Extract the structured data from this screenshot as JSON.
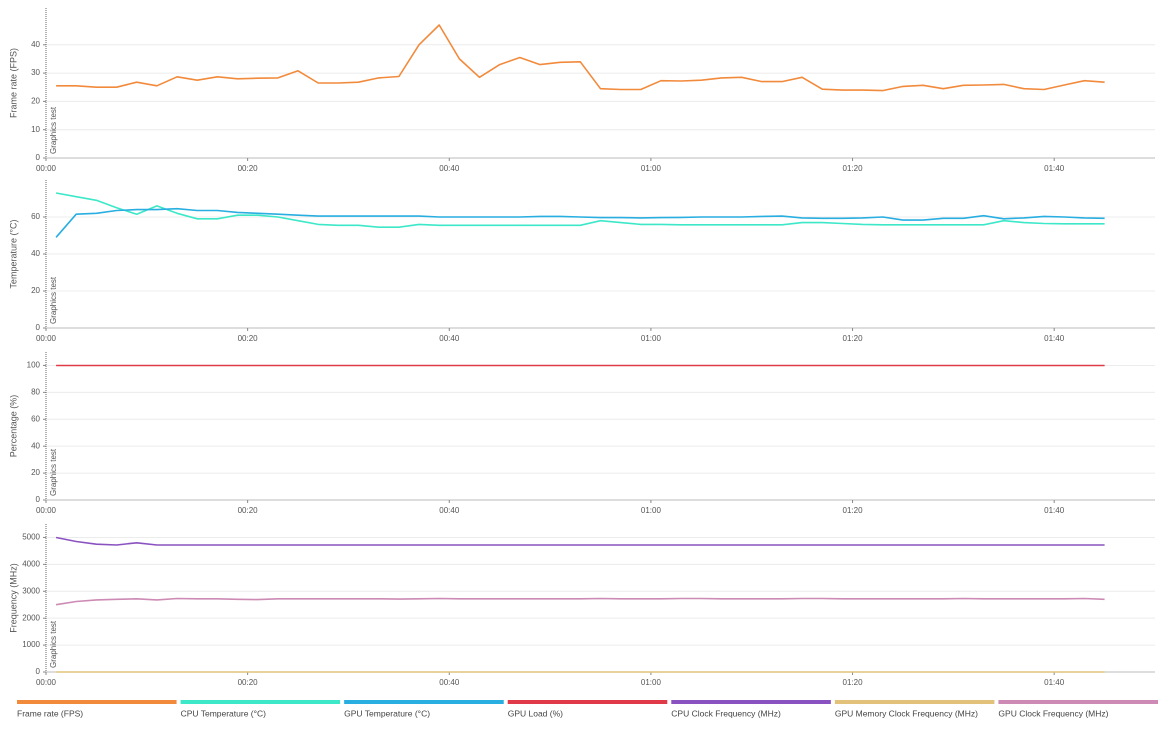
{
  "chart_data": [
    {
      "type": "line",
      "ylabel": "Frame rate (FPS)",
      "annotation": "Graphics test",
      "xlim": [
        0,
        110
      ],
      "xticks": [
        {
          "value": 0,
          "label": "00:00"
        },
        {
          "value": 20,
          "label": "00:20"
        },
        {
          "value": 40,
          "label": "00:40"
        },
        {
          "value": 60,
          "label": "01:00"
        },
        {
          "value": 80,
          "label": "01:20"
        },
        {
          "value": 100,
          "label": "01:40"
        }
      ],
      "ylim": [
        0,
        53
      ],
      "yticks": [
        0,
        10,
        20,
        30,
        40
      ],
      "grid": true,
      "x": [
        1,
        3,
        5,
        7,
        9,
        11,
        13,
        15,
        17,
        19,
        21,
        23,
        25,
        27,
        29,
        31,
        33,
        35,
        37,
        39,
        41,
        43,
        45,
        47,
        49,
        51,
        53,
        55,
        57,
        59,
        61,
        63,
        65,
        67,
        69,
        71,
        73,
        75,
        77,
        79,
        81,
        83,
        85,
        87,
        89,
        91,
        93,
        95,
        97,
        99,
        101,
        103,
        105
      ],
      "series": [
        {
          "name": "Frame rate (FPS)",
          "color": "#f28a3c",
          "values": [
            25.5,
            25.5,
            25,
            25,
            26.8,
            25.5,
            28.7,
            27.5,
            28.7,
            28,
            28.2,
            28.3,
            30.8,
            26.5,
            26.5,
            26.8,
            28.3,
            28.8,
            40,
            47,
            35,
            28.5,
            33,
            35.5,
            33,
            33.8,
            34,
            24.5,
            24.2,
            24.2,
            27.3,
            27.2,
            27.5,
            28.3,
            28.5,
            27,
            27,
            28.5,
            24.3,
            24,
            24,
            23.8,
            25.3,
            25.7,
            24.5,
            25.7,
            25.8,
            26,
            24.5,
            24.2,
            25.8,
            27.3,
            26.8
          ]
        }
      ]
    },
    {
      "type": "line",
      "ylabel": "Temperature (°C)",
      "annotation": "Graphics test",
      "xlim": [
        0,
        110
      ],
      "xticks": [
        {
          "value": 0,
          "label": "00:00"
        },
        {
          "value": 20,
          "label": "00:20"
        },
        {
          "value": 40,
          "label": "00:40"
        },
        {
          "value": 60,
          "label": "01:00"
        },
        {
          "value": 80,
          "label": "01:20"
        },
        {
          "value": 100,
          "label": "01:40"
        }
      ],
      "ylim": [
        0,
        80
      ],
      "yticks": [
        0,
        20,
        40,
        60
      ],
      "grid": true,
      "x": [
        1,
        3,
        5,
        7,
        9,
        11,
        13,
        15,
        17,
        19,
        21,
        23,
        25,
        27,
        29,
        31,
        33,
        35,
        37,
        39,
        41,
        43,
        45,
        47,
        49,
        51,
        53,
        55,
        57,
        59,
        61,
        63,
        65,
        67,
        69,
        71,
        73,
        75,
        77,
        79,
        81,
        83,
        85,
        87,
        89,
        91,
        93,
        95,
        97,
        99,
        101,
        103,
        105
      ],
      "series": [
        {
          "name": "CPU Temperature (°C)",
          "color": "#3de8c8",
          "values": [
            73,
            71,
            69,
            65,
            61.5,
            66,
            62,
            59,
            59,
            61,
            61,
            60,
            58,
            56,
            55.5,
            55.5,
            54.5,
            54.5,
            56,
            55.5,
            55.5,
            55.5,
            55.5,
            55.5,
            55.5,
            55.5,
            55.5,
            58,
            57,
            56,
            56,
            55.8,
            55.8,
            55.8,
            55.8,
            55.8,
            55.8,
            57,
            57,
            56.5,
            56,
            55.8,
            55.8,
            55.8,
            55.8,
            55.8,
            55.8,
            58,
            57,
            56.5,
            56.3,
            56.3,
            56.3
          ]
        },
        {
          "name": "GPU Temperature (°C)",
          "color": "#28aee0",
          "values": [
            49,
            61.5,
            62,
            63.5,
            64,
            64,
            64.5,
            63.5,
            63.5,
            62.5,
            62,
            61.5,
            61,
            60.5,
            60.5,
            60.5,
            60.5,
            60.5,
            60.5,
            60,
            60,
            60,
            60,
            60,
            60.3,
            60.3,
            60,
            59.7,
            59.7,
            59.5,
            59.7,
            59.8,
            60,
            60,
            60,
            60.3,
            60.5,
            59.5,
            59.3,
            59.3,
            59.5,
            60,
            58.3,
            58.3,
            59.3,
            59.3,
            60.7,
            59,
            59.5,
            60.3,
            60,
            59.5,
            59.3
          ]
        }
      ]
    },
    {
      "type": "line",
      "ylabel": "Percentage (%)",
      "annotation": "Graphics test",
      "xlim": [
        0,
        110
      ],
      "xticks": [
        {
          "value": 0,
          "label": "00:00"
        },
        {
          "value": 20,
          "label": "00:20"
        },
        {
          "value": 40,
          "label": "00:40"
        },
        {
          "value": 60,
          "label": "01:00"
        },
        {
          "value": 80,
          "label": "01:20"
        },
        {
          "value": 100,
          "label": "01:40"
        }
      ],
      "ylim": [
        0,
        110
      ],
      "yticks": [
        0,
        20,
        40,
        60,
        80,
        100
      ],
      "grid": true,
      "x": [
        1,
        3,
        5,
        7,
        9,
        11,
        13,
        15,
        17,
        19,
        21,
        23,
        25,
        27,
        29,
        31,
        33,
        35,
        37,
        39,
        41,
        43,
        45,
        47,
        49,
        51,
        53,
        55,
        57,
        59,
        61,
        63,
        65,
        67,
        69,
        71,
        73,
        75,
        77,
        79,
        81,
        83,
        85,
        87,
        89,
        91,
        93,
        95,
        97,
        99,
        101,
        103,
        105
      ],
      "series": [
        {
          "name": "GPU Load (%)",
          "color": "#e03a48",
          "values": [
            100,
            100,
            100,
            100,
            100,
            100,
            100,
            100,
            100,
            100,
            100,
            100,
            100,
            100,
            100,
            100,
            100,
            100,
            100,
            100,
            100,
            100,
            100,
            100,
            100,
            100,
            100,
            100,
            100,
            100,
            100,
            100,
            100,
            100,
            100,
            100,
            100,
            100,
            100,
            100,
            100,
            100,
            100,
            100,
            100,
            100,
            100,
            100,
            100,
            100,
            100,
            100,
            100
          ]
        }
      ]
    },
    {
      "type": "line",
      "ylabel": "Frequency (MHz)",
      "annotation": "Graphics test",
      "xlim": [
        0,
        110
      ],
      "xticks": [
        {
          "value": 0,
          "label": "00:00"
        },
        {
          "value": 20,
          "label": "00:20"
        },
        {
          "value": 40,
          "label": "00:40"
        },
        {
          "value": 60,
          "label": "01:00"
        },
        {
          "value": 80,
          "label": "01:20"
        },
        {
          "value": 100,
          "label": "01:40"
        }
      ],
      "ylim": [
        0,
        5500
      ],
      "yticks": [
        0,
        1000,
        2000,
        3000,
        4000,
        5000
      ],
      "grid": true,
      "x": [
        1,
        3,
        5,
        7,
        9,
        11,
        13,
        15,
        17,
        19,
        21,
        23,
        25,
        27,
        29,
        31,
        33,
        35,
        37,
        39,
        41,
        43,
        45,
        47,
        49,
        51,
        53,
        55,
        57,
        59,
        61,
        63,
        65,
        67,
        69,
        71,
        73,
        75,
        77,
        79,
        81,
        83,
        85,
        87,
        89,
        91,
        93,
        95,
        97,
        99,
        101,
        103,
        105
      ],
      "series": [
        {
          "name": "CPU Clock Frequency (MHz)",
          "color": "#8a52c0",
          "values": [
            5000,
            4850,
            4750,
            4720,
            4800,
            4720,
            4720,
            4720,
            4720,
            4720,
            4720,
            4720,
            4720,
            4720,
            4720,
            4720,
            4720,
            4720,
            4720,
            4720,
            4720,
            4720,
            4720,
            4720,
            4720,
            4720,
            4720,
            4720,
            4720,
            4720,
            4720,
            4720,
            4720,
            4720,
            4720,
            4720,
            4720,
            4720,
            4720,
            4720,
            4720,
            4720,
            4720,
            4720,
            4720,
            4720,
            4720,
            4720,
            4720,
            4720,
            4720,
            4720,
            4720
          ]
        },
        {
          "name": "GPU Memory Clock Frequency (MHz)",
          "color": "#e2c27a",
          "values": [
            0,
            0,
            0,
            0,
            0,
            0,
            0,
            0,
            0,
            0,
            0,
            0,
            0,
            0,
            0,
            0,
            0,
            0,
            0,
            0,
            0,
            0,
            0,
            0,
            0,
            0,
            0,
            0,
            0,
            0,
            0,
            0,
            0,
            0,
            0,
            0,
            0,
            0,
            0,
            0,
            0,
            0,
            0,
            0,
            0,
            0,
            0,
            0,
            0,
            0,
            0,
            0,
            0
          ]
        },
        {
          "name": "GPU Clock Frequency (MHz)",
          "color": "#cc8ab4",
          "values": [
            2500,
            2620,
            2680,
            2700,
            2720,
            2680,
            2730,
            2720,
            2720,
            2700,
            2690,
            2720,
            2720,
            2720,
            2720,
            2720,
            2720,
            2710,
            2720,
            2730,
            2720,
            2720,
            2720,
            2720,
            2720,
            2720,
            2720,
            2730,
            2720,
            2720,
            2720,
            2730,
            2730,
            2720,
            2720,
            2720,
            2720,
            2730,
            2730,
            2720,
            2720,
            2720,
            2720,
            2720,
            2720,
            2730,
            2720,
            2720,
            2720,
            2720,
            2720,
            2730,
            2700
          ]
        }
      ]
    }
  ]
}
